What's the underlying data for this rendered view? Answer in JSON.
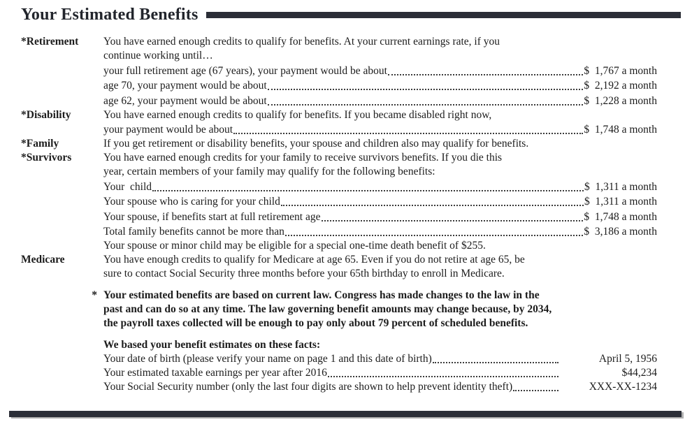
{
  "title": "Your Estimated Benefits",
  "colors": {
    "bar": "#2b2e37",
    "text": "#1c1c1c",
    "bar_shadow": "#b0b0b0",
    "leader_dots": "#3c3c3c"
  },
  "rows": [
    {
      "label": "*Retirement",
      "text": "You have earned enough credits to qualify for benefits. At your current earnings rate, if you"
    },
    {
      "text": "continue working until…"
    },
    {
      "text": "your full retirement age (67 years), your payment would be about",
      "value": "$  1,767 a month"
    },
    {
      "text": "age 70, your payment would be about",
      "value": "$  2,192 a month"
    },
    {
      "text": "age 62, your payment would be about",
      "value": "$  1,228 a month"
    },
    {
      "label": "*Disability",
      "text": "You have earned enough credits to qualify for benefits. If you became disabled right now,"
    },
    {
      "text": "your payment would be about",
      "value": "$  1,748 a month"
    },
    {
      "label": "*Family",
      "text": "If you get retirement or disability benefits, your spouse and children also may qualify for benefits."
    },
    {
      "label": "*Survivors",
      "text": "You have earned enough credits for your family to receive survivors benefits. If you die this"
    },
    {
      "text": "year, certain members of your family may qualify for the following benefits:"
    },
    {
      "text": "Your  child",
      "value": "$  1,311 a month"
    },
    {
      "text": "Your spouse who is caring for your child",
      "value": "$  1,311 a month"
    },
    {
      "text": "Your spouse, if benefits start at full retirement age",
      "value": "$  1,748 a month"
    },
    {
      "text": "Total family benefits cannot be more than",
      "value": "$  3,186 a month"
    },
    {
      "text": "Your spouse or minor child may be eligible for a special one-time death benefit of $255."
    },
    {
      "label": "Medicare",
      "text": "You have enough credits to qualify for Medicare at age 65. Even if you do not retire at age 65, be"
    },
    {
      "text": "sure to contact Social Security three months before your 65th birthday to enroll in Medicare."
    }
  ],
  "footnote": {
    "star": "*",
    "lines": [
      "Your estimated benefits are based on current law. Congress has made changes to the law in the",
      "past and can do so at any time. The law governing benefit amounts may change because, by 2034,",
      "the payroll taxes collected will be enough to pay only about 79 percent of scheduled benefits."
    ]
  },
  "facts": {
    "heading": "We based your benefit estimates on these facts:",
    "items": [
      {
        "text": "Your date of birth (please verify your name on page 1 and this date of birth)",
        "value": "April 5, 1956"
      },
      {
        "text": "Your estimated taxable earnings per year after 2016",
        "value": "$44,234"
      },
      {
        "text": "Your Social Security number (only the last four digits are shown to help prevent identity theft)",
        "value": "XXX-XX-1234"
      }
    ]
  }
}
